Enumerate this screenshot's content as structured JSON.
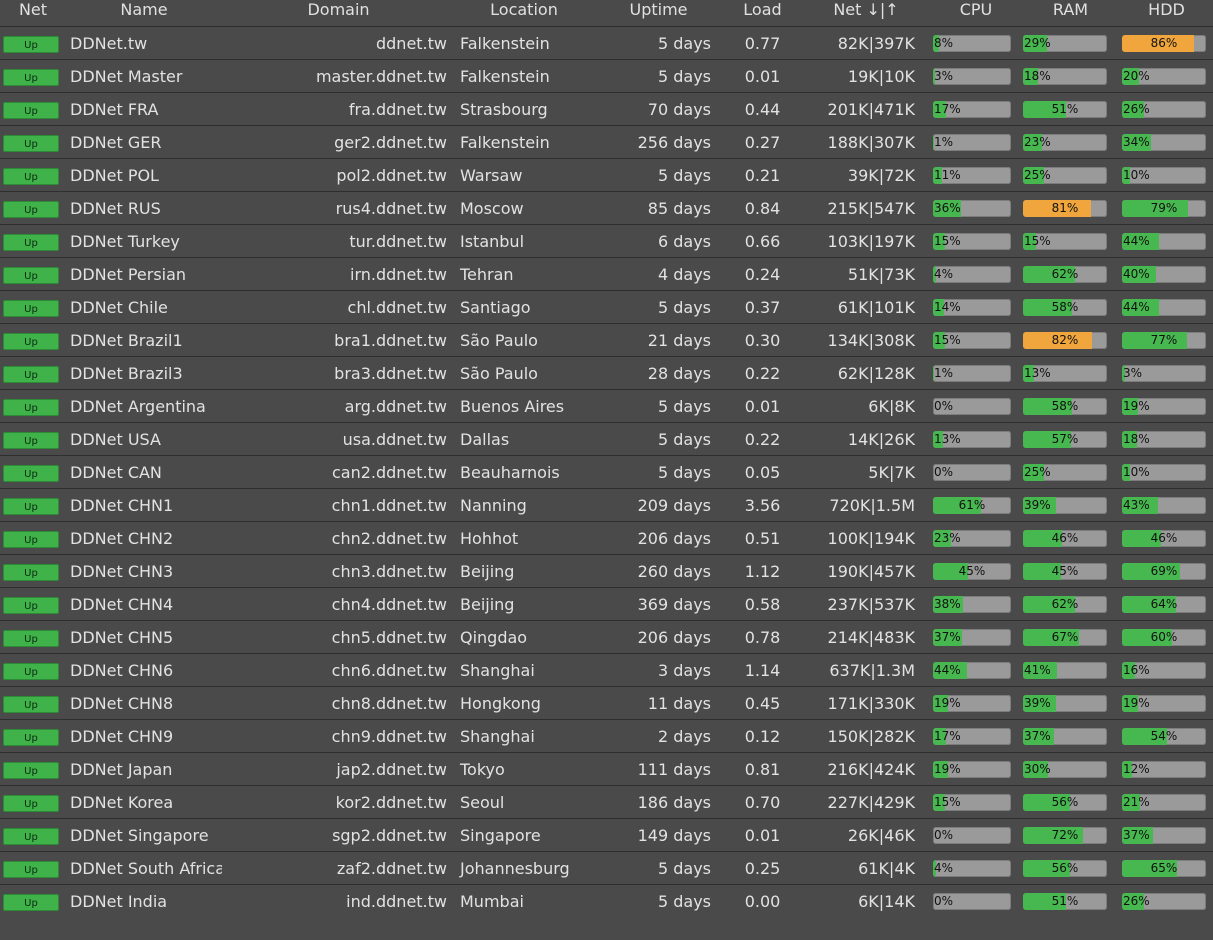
{
  "colors": {
    "background": "#4a4a4a",
    "ok": "#47b84f",
    "warn": "#f0a63c",
    "track": "#9a9a9a",
    "status_up": "#3fb24a"
  },
  "columns": [
    "Net",
    "Name",
    "Domain",
    "Location",
    "Uptime",
    "Load",
    "Net ↓|↑",
    "CPU",
    "RAM",
    "HDD"
  ],
  "servers": [
    {
      "status": "Up",
      "name": "DDNet.tw",
      "domain": "ddnet.tw",
      "location": "Falkenstein",
      "uptime": "5 days",
      "load": "0.77",
      "net": "82K|397K",
      "cpu": "8%",
      "ram": "29%",
      "hdd": "86%"
    },
    {
      "status": "Up",
      "name": "DDNet Master",
      "domain": "master.ddnet.tw",
      "location": "Falkenstein",
      "uptime": "5 days",
      "load": "0.01",
      "net": "19K|10K",
      "cpu": "3%",
      "ram": "18%",
      "hdd": "20%"
    },
    {
      "status": "Up",
      "name": "DDNet FRA",
      "domain": "fra.ddnet.tw",
      "location": "Strasbourg",
      "uptime": "70 days",
      "load": "0.44",
      "net": "201K|471K",
      "cpu": "17%",
      "ram": "51%",
      "hdd": "26%"
    },
    {
      "status": "Up",
      "name": "DDNet GER",
      "domain": "ger2.ddnet.tw",
      "location": "Falkenstein",
      "uptime": "256 days",
      "load": "0.27",
      "net": "188K|307K",
      "cpu": "1%",
      "ram": "23%",
      "hdd": "34%"
    },
    {
      "status": "Up",
      "name": "DDNet POL",
      "domain": "pol2.ddnet.tw",
      "location": "Warsaw",
      "uptime": "5 days",
      "load": "0.21",
      "net": "39K|72K",
      "cpu": "11%",
      "ram": "25%",
      "hdd": "10%"
    },
    {
      "status": "Up",
      "name": "DDNet RUS",
      "domain": "rus4.ddnet.tw",
      "location": "Moscow",
      "uptime": "85 days",
      "load": "0.84",
      "net": "215K|547K",
      "cpu": "36%",
      "ram": "81%",
      "hdd": "79%"
    },
    {
      "status": "Up",
      "name": "DDNet Turkey",
      "domain": "tur.ddnet.tw",
      "location": "Istanbul",
      "uptime": "6 days",
      "load": "0.66",
      "net": "103K|197K",
      "cpu": "15%",
      "ram": "15%",
      "hdd": "44%"
    },
    {
      "status": "Up",
      "name": "DDNet Persian",
      "domain": "irn.ddnet.tw",
      "location": "Tehran",
      "uptime": "4 days",
      "load": "0.24",
      "net": "51K|73K",
      "cpu": "4%",
      "ram": "62%",
      "hdd": "40%"
    },
    {
      "status": "Up",
      "name": "DDNet Chile",
      "domain": "chl.ddnet.tw",
      "location": "Santiago",
      "uptime": "5 days",
      "load": "0.37",
      "net": "61K|101K",
      "cpu": "14%",
      "ram": "58%",
      "hdd": "44%"
    },
    {
      "status": "Up",
      "name": "DDNet Brazil1",
      "domain": "bra1.ddnet.tw",
      "location": "São Paulo",
      "uptime": "21 days",
      "load": "0.30",
      "net": "134K|308K",
      "cpu": "15%",
      "ram": "82%",
      "hdd": "77%"
    },
    {
      "status": "Up",
      "name": "DDNet Brazil3",
      "domain": "bra3.ddnet.tw",
      "location": "São Paulo",
      "uptime": "28 days",
      "load": "0.22",
      "net": "62K|128K",
      "cpu": "1%",
      "ram": "13%",
      "hdd": "3%"
    },
    {
      "status": "Up",
      "name": "DDNet Argentina",
      "domain": "arg.ddnet.tw",
      "location": "Buenos Aires",
      "uptime": "5 days",
      "load": "0.01",
      "net": "6K|8K",
      "cpu": "0%",
      "ram": "58%",
      "hdd": "19%"
    },
    {
      "status": "Up",
      "name": "DDNet USA",
      "domain": "usa.ddnet.tw",
      "location": "Dallas",
      "uptime": "5 days",
      "load": "0.22",
      "net": "14K|26K",
      "cpu": "13%",
      "ram": "57%",
      "hdd": "18%"
    },
    {
      "status": "Up",
      "name": "DDNet CAN",
      "domain": "can2.ddnet.tw",
      "location": "Beauharnois",
      "uptime": "5 days",
      "load": "0.05",
      "net": "5K|7K",
      "cpu": "0%",
      "ram": "25%",
      "hdd": "10%"
    },
    {
      "status": "Up",
      "name": "DDNet CHN1",
      "domain": "chn1.ddnet.tw",
      "location": "Nanning",
      "uptime": "209 days",
      "load": "3.56",
      "net": "720K|1.5M",
      "cpu": "61%",
      "ram": "39%",
      "hdd": "43%"
    },
    {
      "status": "Up",
      "name": "DDNet CHN2",
      "domain": "chn2.ddnet.tw",
      "location": "Hohhot",
      "uptime": "206 days",
      "load": "0.51",
      "net": "100K|194K",
      "cpu": "23%",
      "ram": "46%",
      "hdd": "46%"
    },
    {
      "status": "Up",
      "name": "DDNet CHN3",
      "domain": "chn3.ddnet.tw",
      "location": "Beijing",
      "uptime": "260 days",
      "load": "1.12",
      "net": "190K|457K",
      "cpu": "45%",
      "ram": "45%",
      "hdd": "69%"
    },
    {
      "status": "Up",
      "name": "DDNet CHN4",
      "domain": "chn4.ddnet.tw",
      "location": "Beijing",
      "uptime": "369 days",
      "load": "0.58",
      "net": "237K|537K",
      "cpu": "38%",
      "ram": "62%",
      "hdd": "64%"
    },
    {
      "status": "Up",
      "name": "DDNet CHN5",
      "domain": "chn5.ddnet.tw",
      "location": "Qingdao",
      "uptime": "206 days",
      "load": "0.78",
      "net": "214K|483K",
      "cpu": "37%",
      "ram": "67%",
      "hdd": "60%"
    },
    {
      "status": "Up",
      "name": "DDNet CHN6",
      "domain": "chn6.ddnet.tw",
      "location": "Shanghai",
      "uptime": "3 days",
      "load": "1.14",
      "net": "637K|1.3M",
      "cpu": "44%",
      "ram": "41%",
      "hdd": "16%"
    },
    {
      "status": "Up",
      "name": "DDNet CHN8",
      "domain": "chn8.ddnet.tw",
      "location": "Hongkong",
      "uptime": "11 days",
      "load": "0.45",
      "net": "171K|330K",
      "cpu": "19%",
      "ram": "39%",
      "hdd": "19%"
    },
    {
      "status": "Up",
      "name": "DDNet CHN9",
      "domain": "chn9.ddnet.tw",
      "location": "Shanghai",
      "uptime": "2 days",
      "load": "0.12",
      "net": "150K|282K",
      "cpu": "17%",
      "ram": "37%",
      "hdd": "54%"
    },
    {
      "status": "Up",
      "name": "DDNet Japan",
      "domain": "jap2.ddnet.tw",
      "location": "Tokyo",
      "uptime": "111 days",
      "load": "0.81",
      "net": "216K|424K",
      "cpu": "19%",
      "ram": "30%",
      "hdd": "12%"
    },
    {
      "status": "Up",
      "name": "DDNet Korea",
      "domain": "kor2.ddnet.tw",
      "location": "Seoul",
      "uptime": "186 days",
      "load": "0.70",
      "net": "227K|429K",
      "cpu": "15%",
      "ram": "56%",
      "hdd": "21%"
    },
    {
      "status": "Up",
      "name": "DDNet Singapore",
      "domain": "sgp2.ddnet.tw",
      "location": "Singapore",
      "uptime": "149 days",
      "load": "0.01",
      "net": "26K|46K",
      "cpu": "0%",
      "ram": "72%",
      "hdd": "37%"
    },
    {
      "status": "Up",
      "name": "DDNet South Africa",
      "domain": "zaf2.ddnet.tw",
      "location": "Johannesburg",
      "uptime": "5 days",
      "load": "0.25",
      "net": "61K|4K",
      "cpu": "4%",
      "ram": "56%",
      "hdd": "65%"
    },
    {
      "status": "Up",
      "name": "DDNet India",
      "domain": "ind.ddnet.tw",
      "location": "Mumbai",
      "uptime": "5 days",
      "load": "0.00",
      "net": "6K|14K",
      "cpu": "0%",
      "ram": "51%",
      "hdd": "26%"
    }
  ]
}
